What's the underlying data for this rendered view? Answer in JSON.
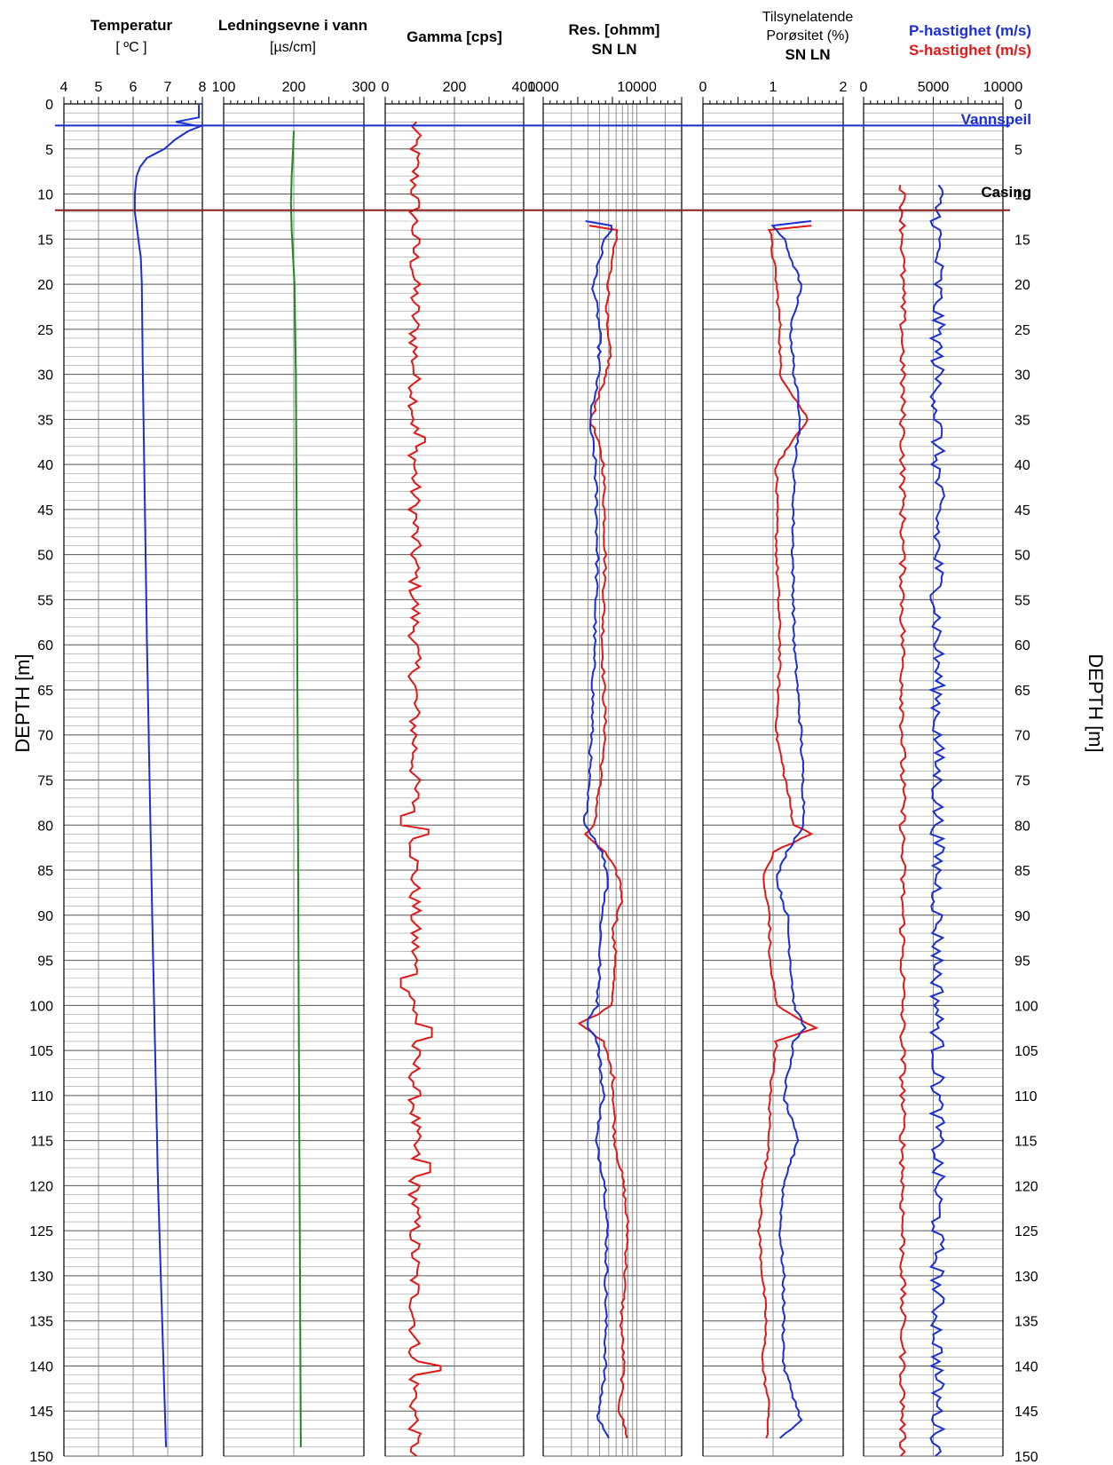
{
  "chart_data": {
    "type": "line",
    "depth_axis": {
      "label_left": "DEPTH  [m]",
      "label_right": "DEPTH [m]",
      "range": [
        0,
        150
      ],
      "ticks": [
        0,
        5,
        10,
        15,
        20,
        25,
        30,
        35,
        40,
        45,
        50,
        55,
        60,
        65,
        70,
        75,
        80,
        85,
        90,
        95,
        100,
        105,
        110,
        115,
        120,
        125,
        130,
        135,
        140,
        145,
        150
      ],
      "inverted": true
    },
    "annotations": {
      "water_table": {
        "label": "Vannspeil",
        "depth": 2.4,
        "color": "#1a2fd6"
      },
      "casing": {
        "label": "Casing",
        "depth": 11.8,
        "color": "#8a1f1f"
      }
    },
    "tracks": [
      {
        "id": "temperature",
        "title_lines": [
          "Temperatur",
          "[ ºC ]"
        ],
        "range": [
          4,
          8
        ],
        "scale": "linear",
        "tick_labels": [
          "4",
          "5",
          "6",
          "7",
          "8"
        ],
        "series": [
          {
            "color": "#1a2fd6",
            "points": [
              [
                0.0,
                7.9
              ],
              [
                1.8,
                7.9
              ],
              [
                2.1,
                6.9
              ],
              [
                2.4,
                8.0
              ],
              [
                3.0,
                7.6
              ],
              [
                4.0,
                7.2
              ],
              [
                5.0,
                6.9
              ],
              [
                6.0,
                6.4
              ],
              [
                7.0,
                6.2
              ],
              [
                8.0,
                6.1
              ],
              [
                10.0,
                6.05
              ],
              [
                12.0,
                6.05
              ],
              [
                15.0,
                6.15
              ],
              [
                17.0,
                6.22
              ],
              [
                20.0,
                6.25
              ],
              [
                30.0,
                6.28
              ],
              [
                60.0,
                6.4
              ],
              [
                90.0,
                6.55
              ],
              [
                120.0,
                6.72
              ],
              [
                149.0,
                6.95
              ]
            ]
          }
        ]
      },
      {
        "id": "conductivity",
        "title_lines": [
          "Ledningsevne i vann",
          "[µs/cm]"
        ],
        "range": [
          100,
          300
        ],
        "scale": "linear",
        "tick_labels": [
          "100",
          "200",
          "300"
        ],
        "series": [
          {
            "color": "#1e8a1e",
            "points": [
              [
                3.0,
                200
              ],
              [
                5.0,
                199
              ],
              [
                8.0,
                197
              ],
              [
                11.0,
                196
              ],
              [
                14.0,
                197
              ],
              [
                20.0,
                201
              ],
              [
                30.0,
                203
              ],
              [
                60.0,
                205
              ],
              [
                100.0,
                207
              ],
              [
                149.0,
                210
              ]
            ]
          }
        ]
      },
      {
        "id": "gamma",
        "title_lines": [
          "Gamma [cps]"
        ],
        "range": [
          0,
          400
        ],
        "scale": "linear",
        "tick_labels": [
          "0",
          "200",
          "400"
        ],
        "series": [
          {
            "color": "#e01818",
            "base": 85,
            "amp": 18,
            "spikes": [
              [
                37.2,
                115
              ],
              [
                80.5,
                125
              ],
              [
                103.0,
                135
              ],
              [
                118.0,
                130
              ],
              [
                140.3,
                160
              ],
              [
                97.5,
                45
              ],
              [
                79.5,
                45
              ]
            ],
            "depth_range": [
              2,
              150
            ]
          }
        ]
      },
      {
        "id": "resistivity",
        "title_lines": [
          "Res. [ohmm]",
          "SN  LN"
        ],
        "range": [
          1000,
          30000
        ],
        "scale": "log",
        "tick_labels": [
          "1000",
          "10000"
        ],
        "series": [
          {
            "name": "SN",
            "color": "#e01818",
            "points": [
              [
                13.5,
                3000
              ],
              [
                14.0,
                6200
              ],
              [
                16.0,
                5600
              ],
              [
                20.0,
                5000
              ],
              [
                25.0,
                4700
              ],
              [
                28.0,
                5200
              ],
              [
                35.0,
                3200
              ],
              [
                40.0,
                4400
              ],
              [
                50.0,
                4600
              ],
              [
                60.0,
                4300
              ],
              [
                70.0,
                4600
              ],
              [
                80.0,
                3500
              ],
              [
                81.0,
                2700
              ],
              [
                83.0,
                4500
              ],
              [
                86.0,
                6500
              ],
              [
                88.0,
                7000
              ],
              [
                92.0,
                5500
              ],
              [
                95.0,
                6000
              ],
              [
                100.0,
                5200
              ],
              [
                102.0,
                2400
              ],
              [
                104.0,
                4300
              ],
              [
                108.0,
                5600
              ],
              [
                115.0,
                5800
              ],
              [
                120.0,
                7200
              ],
              [
                125.0,
                8000
              ],
              [
                130.0,
                7500
              ],
              [
                135.0,
                6800
              ],
              [
                140.0,
                7200
              ],
              [
                145.0,
                6500
              ],
              [
                148.0,
                8000
              ]
            ]
          },
          {
            "name": "LN",
            "color": "#1a2fd6",
            "points": [
              [
                13.0,
                2800
              ],
              [
                13.6,
                5800
              ],
              [
                15.0,
                4500
              ],
              [
                20.0,
                3400
              ],
              [
                25.0,
                4000
              ],
              [
                30.0,
                3900
              ],
              [
                35.0,
                3100
              ],
              [
                40.0,
                3600
              ],
              [
                50.0,
                3800
              ],
              [
                60.0,
                3500
              ],
              [
                70.0,
                3300
              ],
              [
                80.0,
                2800
              ],
              [
                81.0,
                3300
              ],
              [
                83.0,
                4200
              ],
              [
                86.0,
                5000
              ],
              [
                90.0,
                4200
              ],
              [
                95.0,
                4000
              ],
              [
                100.0,
                3800
              ],
              [
                102.0,
                2900
              ],
              [
                104.0,
                3800
              ],
              [
                110.0,
                4400
              ],
              [
                115.0,
                3600
              ],
              [
                120.0,
                4600
              ],
              [
                125.0,
                4800
              ],
              [
                130.0,
                4700
              ],
              [
                140.0,
                4600
              ],
              [
                146.0,
                3800
              ],
              [
                148.0,
                5200
              ]
            ]
          }
        ]
      },
      {
        "id": "porosity",
        "title_lines": [
          "Tilsynelatende",
          "Porøsitet (%)",
          "SN  LN"
        ],
        "range": [
          0,
          2
        ],
        "scale": "linear",
        "tick_labels": [
          "0",
          "1",
          "2"
        ],
        "series": [
          {
            "name": "SN",
            "color": "#e01818",
            "points": [
              [
                13.5,
                1.55
              ],
              [
                14.0,
                0.95
              ],
              [
                20.0,
                1.05
              ],
              [
                25.0,
                1.1
              ],
              [
                30.0,
                1.1
              ],
              [
                35.0,
                1.5
              ],
              [
                40.0,
                1.05
              ],
              [
                50.0,
                1.05
              ],
              [
                60.0,
                1.1
              ],
              [
                70.0,
                1.05
              ],
              [
                80.0,
                1.3
              ],
              [
                81.0,
                1.55
              ],
              [
                83.0,
                1.0
              ],
              [
                86.0,
                0.85
              ],
              [
                90.0,
                0.95
              ],
              [
                95.0,
                0.95
              ],
              [
                100.0,
                1.05
              ],
              [
                102.5,
                1.6
              ],
              [
                104.0,
                1.05
              ],
              [
                110.0,
                0.95
              ],
              [
                115.0,
                0.95
              ],
              [
                120.0,
                0.85
              ],
              [
                125.0,
                0.8
              ],
              [
                130.0,
                0.85
              ],
              [
                135.0,
                0.9
              ],
              [
                140.0,
                0.85
              ],
              [
                145.0,
                0.95
              ],
              [
                148.0,
                0.9
              ]
            ]
          },
          {
            "name": "LN",
            "color": "#1a2fd6",
            "points": [
              [
                13.0,
                1.55
              ],
              [
                13.5,
                1.0
              ],
              [
                15.0,
                1.15
              ],
              [
                20.0,
                1.4
              ],
              [
                25.0,
                1.25
              ],
              [
                30.0,
                1.3
              ],
              [
                35.0,
                1.4
              ],
              [
                40.0,
                1.3
              ],
              [
                50.0,
                1.28
              ],
              [
                60.0,
                1.3
              ],
              [
                70.0,
                1.4
              ],
              [
                80.0,
                1.45
              ],
              [
                81.0,
                1.35
              ],
              [
                83.0,
                1.2
              ],
              [
                86.0,
                1.05
              ],
              [
                90.0,
                1.2
              ],
              [
                95.0,
                1.25
              ],
              [
                100.0,
                1.3
              ],
              [
                102.5,
                1.45
              ],
              [
                104.0,
                1.3
              ],
              [
                110.0,
                1.15
              ],
              [
                115.0,
                1.35
              ],
              [
                120.0,
                1.15
              ],
              [
                125.0,
                1.1
              ],
              [
                130.0,
                1.15
              ],
              [
                140.0,
                1.15
              ],
              [
                146.0,
                1.4
              ],
              [
                148.0,
                1.1
              ]
            ]
          }
        ]
      },
      {
        "id": "velocity",
        "title_lines": [
          "P-hastighet (m/s)",
          "S-hastighet (m/s)"
        ],
        "range": [
          0,
          10000
        ],
        "scale": "linear",
        "tick_labels": [
          "0",
          "5000",
          "10000"
        ],
        "series": [
          {
            "name": "P-hastighet (m/s)",
            "color": "#1a2fd6",
            "base": 5300,
            "amp": 500,
            "depth_range": [
              9,
              150
            ]
          },
          {
            "name": "S-hastighet (m/s)",
            "color": "#e01818",
            "base": 2800,
            "amp": 220,
            "depth_range": [
              9,
              150
            ]
          }
        ]
      }
    ]
  }
}
